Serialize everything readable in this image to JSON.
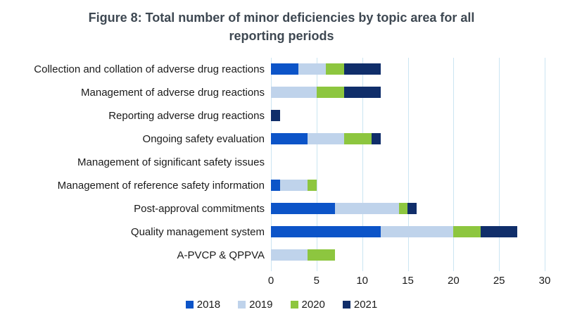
{
  "chart_data": {
    "type": "bar",
    "orientation": "horizontal",
    "stacked": true,
    "title": "Figure 8: Total number of minor deficiencies by topic area for all reporting periods",
    "categories": [
      "Collection and collation of adverse drug reactions",
      "Management of adverse drug reactions",
      "Reporting adverse drug reactions",
      "Ongoing safety evaluation",
      "Management of significant safety issues",
      "Management of reference safety information",
      "Post-approval commitments",
      "Quality management system",
      "A-PVCP & QPPVA"
    ],
    "series": [
      {
        "name": "2018",
        "color": "#0c54c8",
        "values": [
          3,
          0,
          0,
          4,
          0,
          1,
          7,
          12,
          0
        ]
      },
      {
        "name": "2019",
        "color": "#bfd3eb",
        "values": [
          3,
          5,
          0,
          4,
          0,
          3,
          7,
          8,
          4
        ]
      },
      {
        "name": "2020",
        "color": "#8dc63f",
        "values": [
          2,
          3,
          0,
          3,
          0,
          1,
          1,
          3,
          3
        ]
      },
      {
        "name": "2021",
        "color": "#102e6a",
        "values": [
          4,
          4,
          1,
          1,
          0,
          0,
          1,
          4,
          0
        ]
      }
    ],
    "totals": [
      12,
      12,
      1,
      12,
      0,
      5,
      16,
      27,
      7
    ],
    "xticks": [
      0,
      5,
      10,
      15,
      20,
      25,
      30
    ],
    "xlim": [
      0,
      30
    ],
    "grid": true,
    "gridline_color": "#cbe5f2",
    "title_color": "#3e4852",
    "legend_position": "bottom"
  }
}
